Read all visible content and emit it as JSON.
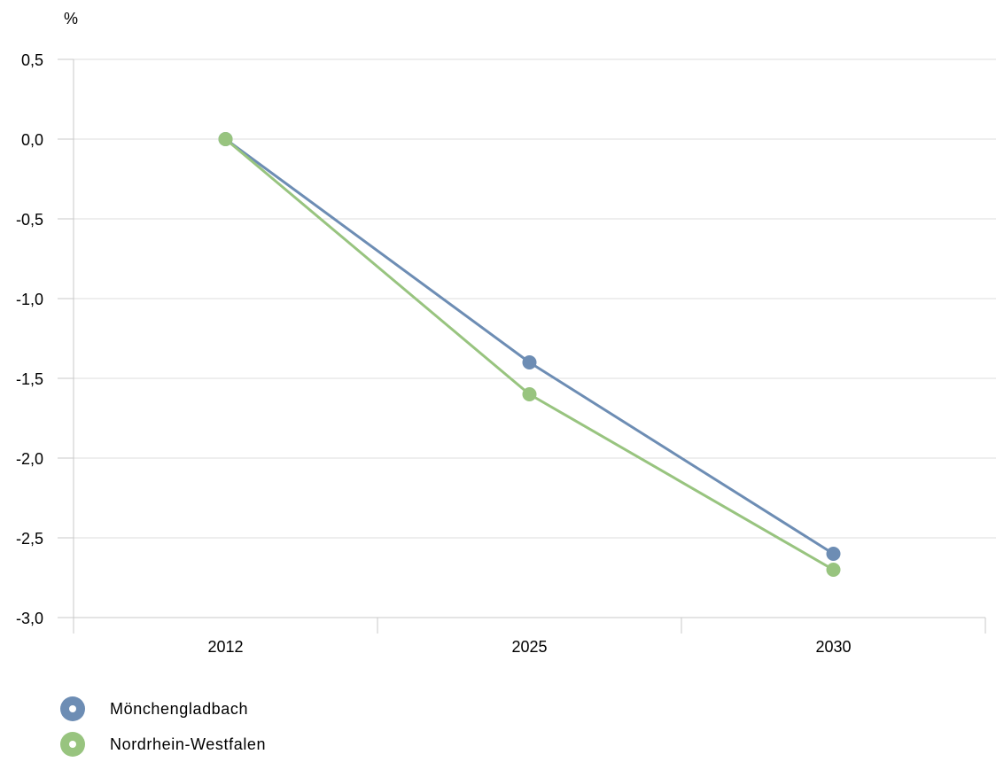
{
  "chart_data": {
    "type": "line",
    "unit_label": "%",
    "x": [
      "2012",
      "2025",
      "2030"
    ],
    "series": [
      {
        "name": "Mönchengladbach",
        "values": [
          0.0,
          -1.4,
          -2.6
        ],
        "color": "#6d8db4"
      },
      {
        "name": "Nordrhein-Westfalen",
        "values": [
          0.0,
          -1.6,
          -2.7
        ],
        "color": "#98c47f"
      }
    ],
    "ylim": [
      -3.0,
      0.5
    ],
    "yticks": [
      0.5,
      0.0,
      -0.5,
      -1.0,
      -1.5,
      -2.0,
      -2.5,
      -3.0
    ],
    "ytick_labels": [
      "0,5",
      "0,0",
      "-0,5",
      "-1,0",
      "-1,5",
      "-2,0",
      "-2,5",
      "-3,0"
    ],
    "grid": true,
    "legend_position": "bottom-left"
  }
}
